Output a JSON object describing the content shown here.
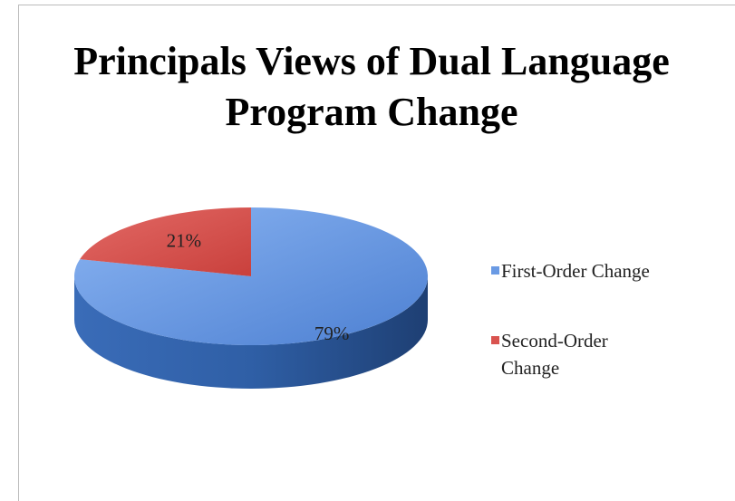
{
  "chart_data": {
    "type": "pie",
    "title": "Principals Views of Dual Language Program Change",
    "categories": [
      "First-Order Change",
      "Second-Order Change"
    ],
    "values": [
      79,
      21
    ],
    "value_labels": [
      "79%",
      "21%"
    ],
    "colors": [
      "#6a9ae4",
      "#d9534f"
    ],
    "legend": "right"
  }
}
